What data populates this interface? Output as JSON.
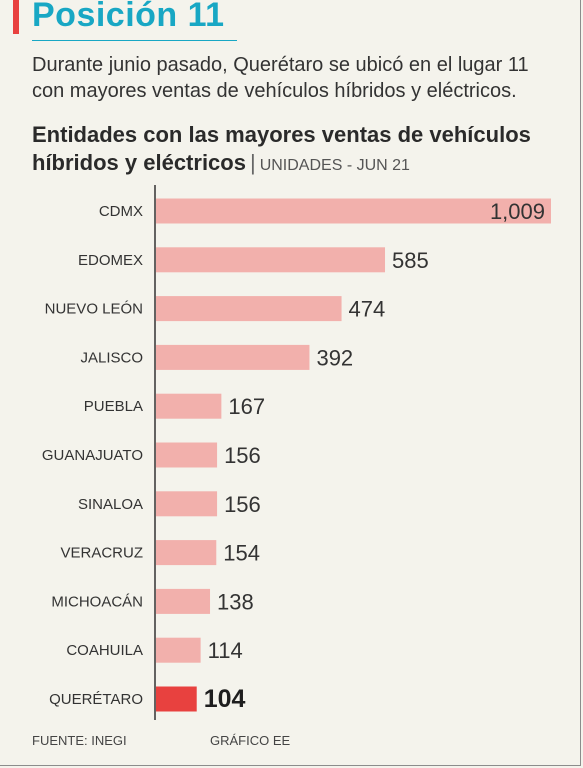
{
  "headline": "Posición 11",
  "deck": "Durante junio pasado, Querétaro se ubicó en el lugar 11 con mayores ventas de vehículos híbridos y eléctricos.",
  "chart_title": "Entidades con las mayores ventas de vehículos híbridos y eléctricos",
  "chart_subtitle": "UNIDADES - JUN 21",
  "footer": {
    "source": "FUENTE: INEGI",
    "credit": "GRÁFICO EE"
  },
  "colors": {
    "bar": "#f2b0ac",
    "highlight": "#e8413f",
    "accent": "#18a7c4"
  },
  "chart_data": {
    "type": "bar",
    "orientation": "horizontal",
    "categories": [
      "CDMX",
      "EDOMEX",
      "NUEVO LEÓN",
      "JALISCO",
      "PUEBLA",
      "GUANAJUATO",
      "SINALOA",
      "VERACRUZ",
      "MICHOACÁN",
      "COAHUILA",
      "QUERÉTARO"
    ],
    "values": [
      1009,
      585,
      474,
      392,
      167,
      156,
      156,
      154,
      138,
      114,
      104
    ],
    "value_labels": [
      "1,009",
      "585",
      "474",
      "392",
      "167",
      "156",
      "156",
      "154",
      "138",
      "114",
      "104"
    ],
    "highlight": "QUERÉTARO",
    "title": "Entidades con las mayores ventas de vehículos híbridos y eléctricos",
    "subtitle": "UNIDADES - JUN 21",
    "xlim": [
      0,
      1009
    ],
    "grid": false,
    "legend": "none"
  }
}
